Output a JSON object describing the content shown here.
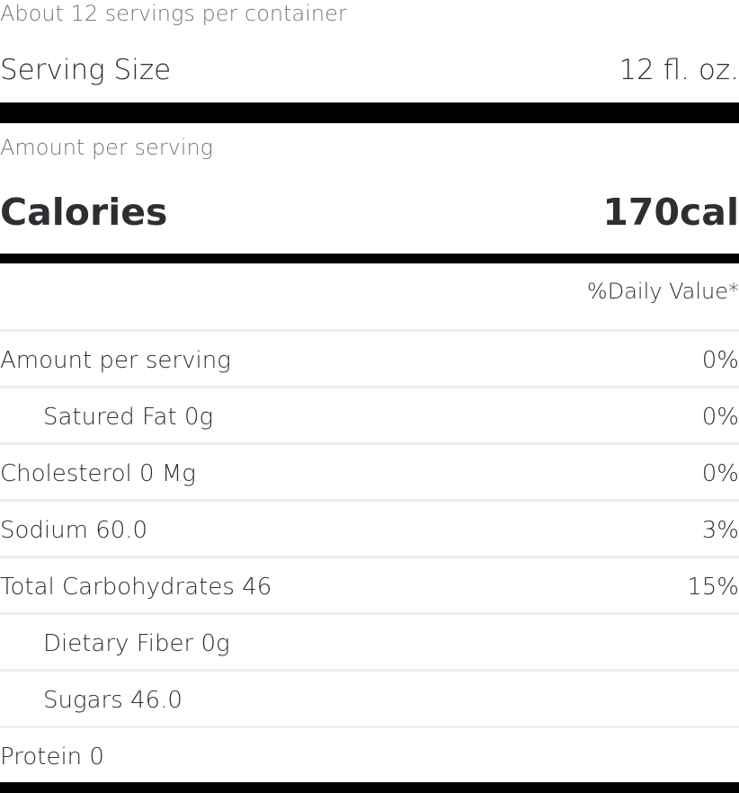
{
  "servings_per_container": "About 12 servings per container",
  "serving_size": {
    "label": "Serving Size",
    "value": "12 fl. oz."
  },
  "amount_per_serving": "Amount per serving",
  "calories": {
    "label": "Calories",
    "value": "170cal"
  },
  "daily_value_header": "%Daily Value*",
  "nutrients": [
    {
      "label": "Amount per serving",
      "dv": "0%"
    },
    {
      "label": "Satured Fat 0g",
      "dv": "0%"
    },
    {
      "label": "Cholesterol 0 Mg",
      "dv": "0%"
    },
    {
      "label": "Sodium 60.0",
      "dv": "3%"
    },
    {
      "label": "Total Carbohydrates 46",
      "dv": "15%"
    },
    {
      "label": "Dietary Fiber 0g",
      "dv": ""
    },
    {
      "label": "Sugars 46.0",
      "dv": ""
    },
    {
      "label": "Protein 0",
      "dv": ""
    }
  ]
}
